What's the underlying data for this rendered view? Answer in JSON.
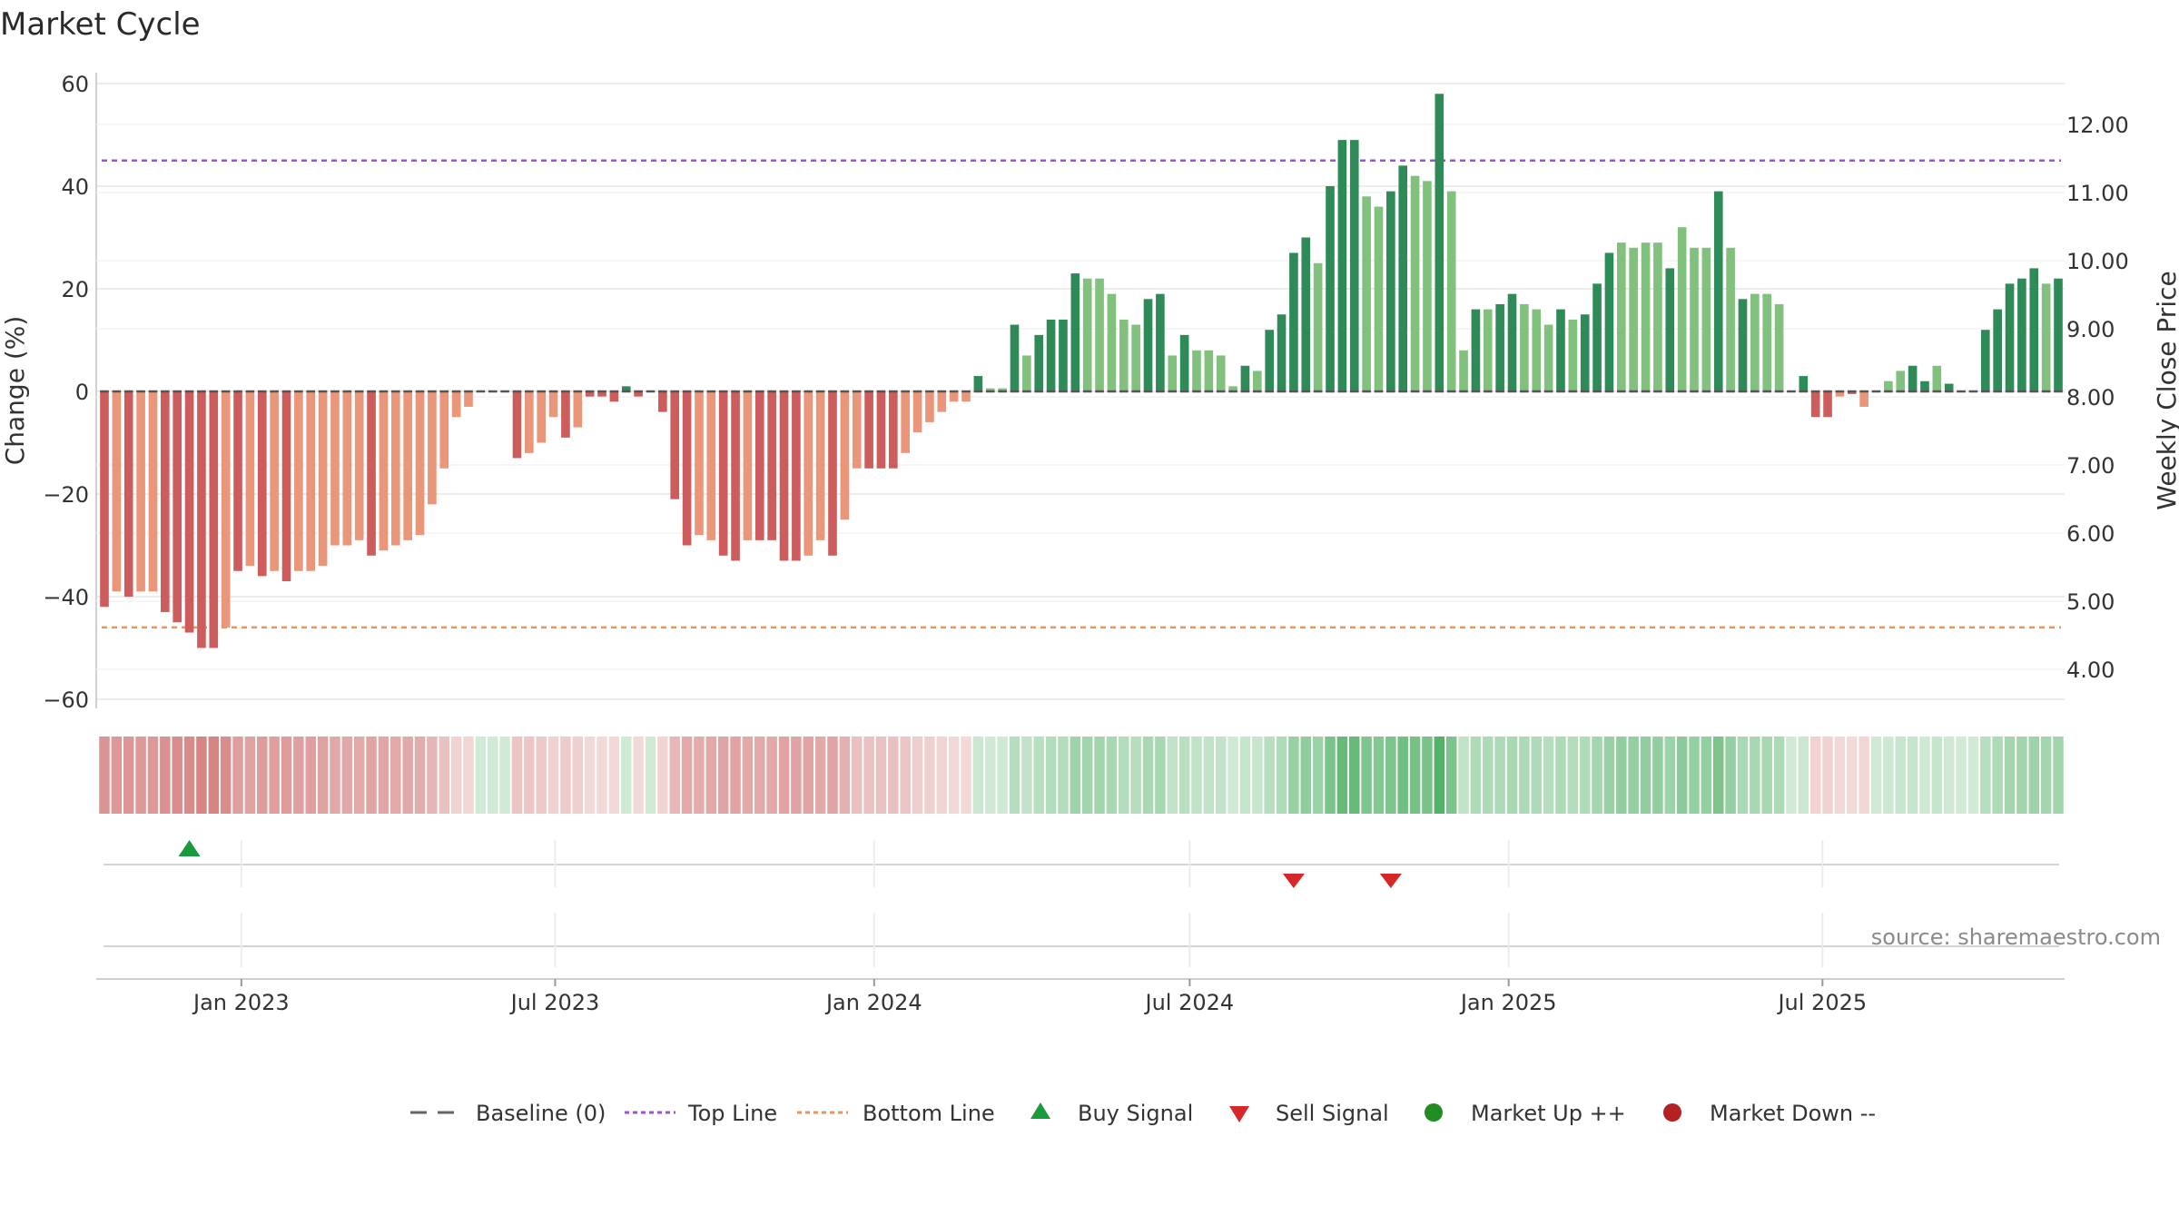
{
  "chart_data": {
    "type": "bar",
    "title": "Market Cycle",
    "ylabel_left": "Change (%)",
    "ylabel_right": "Weekly Close Price",
    "source": "source: sharemaestro.com",
    "ylim_left": [
      -60,
      60
    ],
    "left_ticks": [
      "60",
      "40",
      "20",
      "0",
      "−20",
      "−40",
      "−60"
    ],
    "left_tick_values": [
      60,
      40,
      20,
      0,
      -20,
      -40,
      -60
    ],
    "right_ticks": [
      "12.00",
      "11.00",
      "10.00",
      "9.00",
      "8.00",
      "7.00",
      "6.00",
      "5.00",
      "4.00"
    ],
    "right_tick_values": [
      12,
      11,
      10,
      9,
      8,
      7,
      6,
      5,
      4
    ],
    "top_line": 45,
    "bottom_line": -46,
    "x_start": "2022-10-14",
    "week_step_days": 7,
    "x_ticks": [
      {
        "label": "Jan 2023",
        "date": "2023-01-01"
      },
      {
        "label": "Jul 2023",
        "date": "2023-07-01"
      },
      {
        "label": "Jan 2024",
        "date": "2024-01-01"
      },
      {
        "label": "Jul 2024",
        "date": "2024-07-01"
      },
      {
        "label": "Jan 2025",
        "date": "2025-01-01"
      },
      {
        "label": "Jul 2025",
        "date": "2025-07-01"
      }
    ],
    "values": [
      -42,
      -39,
      -40,
      -39,
      -39,
      -43,
      -45,
      -47,
      -50,
      -50,
      -46,
      -35,
      -34,
      -36,
      -35,
      -37,
      -35,
      -35,
      -34,
      -30,
      -30,
      -29,
      -32,
      -31,
      -30,
      -29,
      -28,
      -22,
      -15,
      -5,
      -3,
      0,
      0,
      0,
      -13,
      -12,
      -10,
      -5,
      -9,
      -7,
      -1,
      -1,
      -2,
      1,
      -1,
      0,
      -4,
      -21,
      -30,
      -28,
      -29,
      -32,
      -33,
      -29,
      -29,
      -29,
      -33,
      -33,
      -32,
      -29,
      -32,
      -25,
      -15,
      -15,
      -15,
      -15,
      -12,
      -8,
      -6,
      -4,
      -2,
      -2,
      3,
      0.6,
      0.6,
      13,
      7,
      11,
      14,
      14,
      23,
      22,
      22,
      19,
      14,
      13,
      18,
      19,
      7,
      11,
      8,
      8,
      7,
      1,
      5,
      4,
      12,
      15,
      27,
      30,
      25,
      40,
      49,
      49,
      38,
      36,
      39,
      44,
      42,
      41,
      58,
      39,
      8,
      16,
      16,
      17,
      19,
      17,
      16,
      13,
      16,
      14,
      15,
      21,
      27,
      29,
      28,
      29,
      29,
      24,
      32,
      28,
      28,
      39,
      28,
      18,
      19,
      19,
      17,
      0,
      3,
      -5,
      -5,
      -1,
      -0.5,
      -3,
      0,
      2,
      4,
      5,
      2,
      5,
      1.5,
      0,
      0,
      12,
      16,
      21,
      22,
      24,
      21,
      22
    ],
    "shade": [
      1,
      0,
      1,
      0,
      0,
      1,
      1,
      1,
      1,
      1,
      0,
      1,
      0,
      1,
      0,
      1,
      0,
      0,
      0,
      0,
      0,
      0,
      1,
      0,
      0,
      0,
      0,
      0,
      0,
      0,
      0,
      0,
      0,
      0,
      1,
      0,
      0,
      0,
      1,
      0,
      1,
      1,
      1,
      1,
      1,
      0,
      1,
      1,
      1,
      0,
      0,
      1,
      1,
      0,
      1,
      1,
      1,
      1,
      0,
      0,
      1,
      0,
      0,
      1,
      1,
      1,
      0,
      0,
      0,
      0,
      0,
      0,
      1,
      0,
      0,
      1,
      0,
      1,
      1,
      1,
      1,
      0,
      0,
      0,
      0,
      0,
      1,
      1,
      0,
      1,
      0,
      0,
      0,
      0,
      1,
      0,
      1,
      1,
      1,
      1,
      0,
      1,
      1,
      1,
      0,
      0,
      1,
      1,
      0,
      0,
      1,
      0,
      0,
      1,
      0,
      1,
      1,
      0,
      0,
      0,
      1,
      0,
      1,
      1,
      1,
      0,
      0,
      0,
      0,
      1,
      0,
      0,
      0,
      1,
      0,
      1,
      0,
      0,
      0,
      0,
      1,
      1,
      1,
      0,
      1,
      0,
      1,
      0,
      0,
      1,
      1,
      0,
      1,
      0,
      0,
      1,
      1,
      1,
      1,
      1,
      0,
      1
    ],
    "buy_signals": [
      "2022-12-02"
    ],
    "sell_signals": [
      "2024-08-30",
      "2024-10-25"
    ],
    "legend": [
      {
        "label": "Baseline (0)",
        "style": "dash-gray"
      },
      {
        "label": "Top Line",
        "style": "dot-purple"
      },
      {
        "label": "Bottom Line",
        "style": "dot-orange"
      },
      {
        "label": "Buy Signal",
        "style": "tri-up-green"
      },
      {
        "label": "Sell Signal",
        "style": "tri-down-red"
      },
      {
        "label": "Market Up ++",
        "style": "dot-green"
      },
      {
        "label": "Market Down --",
        "style": "dot-darkred"
      }
    ],
    "colors": {
      "dark_green": "#2e8b57",
      "light_green": "#82c07e",
      "dark_red": "#cd5c5c",
      "light_red": "#e9967a",
      "top_line": "#9a55d6",
      "bottom_line": "#e8955a",
      "buy": "#1a9a3c",
      "sell": "#d62828",
      "market_up": "#228b22",
      "market_down": "#b22222",
      "baseline": "#555555"
    }
  }
}
